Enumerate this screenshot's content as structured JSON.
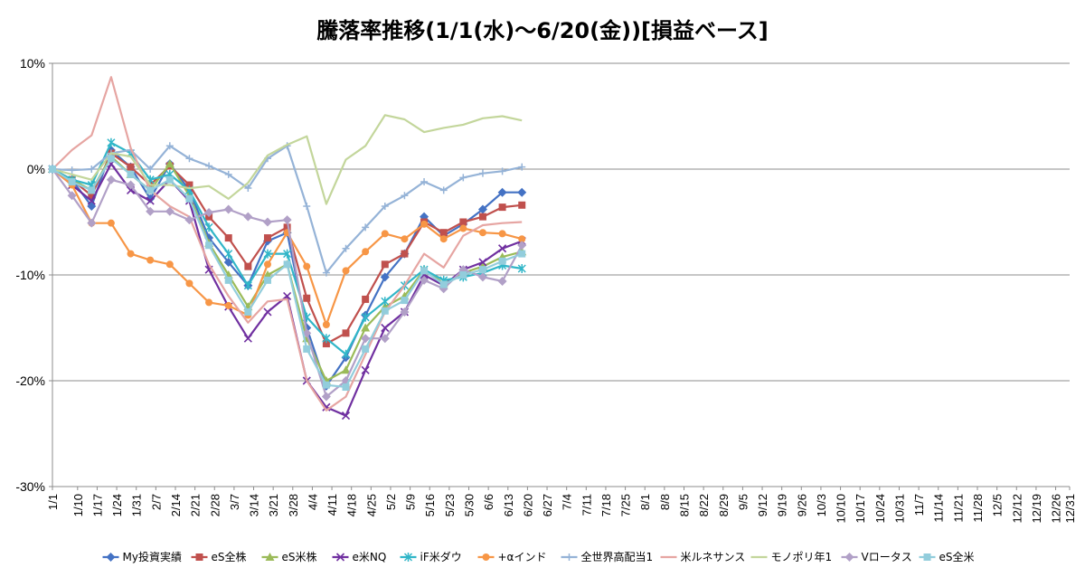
{
  "chart_data": {
    "type": "line",
    "title": "騰落率推移(1/1(水)〜6/20(金))[損益ベース]",
    "xlabel": "",
    "ylabel": "",
    "ylim": [
      -30,
      10
    ],
    "yticks": [
      "10%",
      "0%",
      "-10%",
      "-20%",
      "-30%"
    ],
    "ytick_values": [
      10,
      0,
      -10,
      -20,
      -30
    ],
    "grid": "horizontal",
    "legend": "bottom",
    "categories": [
      "1/1",
      "1/10",
      "1/17",
      "1/24",
      "1/31",
      "2/7",
      "2/14",
      "2/21",
      "2/28",
      "3/7",
      "3/14",
      "3/21",
      "3/28",
      "4/4",
      "4/11",
      "4/18",
      "4/25",
      "5/2",
      "5/9",
      "5/16",
      "5/23",
      "5/30",
      "6/6",
      "6/13",
      "6/20",
      "6/27",
      "7/4",
      "7/11",
      "7/18",
      "7/25",
      "8/1",
      "8/8",
      "8/15",
      "8/22",
      "8/29",
      "9/5",
      "9/12",
      "9/19",
      "9/26",
      "10/3",
      "10/10",
      "10/17",
      "10/24",
      "10/31",
      "11/7",
      "11/14",
      "11/21",
      "11/28",
      "12/5",
      "12/12",
      "12/19",
      "12/26",
      "12/31"
    ],
    "x_days": [
      0,
      9,
      16,
      23,
      30,
      37,
      44,
      51,
      58,
      65,
      72,
      79,
      86,
      93,
      100,
      107,
      114,
      121,
      128,
      135,
      142,
      149,
      156,
      163,
      170,
      177,
      184,
      191,
      198,
      205,
      212,
      219,
      226,
      233,
      240,
      247,
      254,
      261,
      268,
      275,
      282,
      289,
      296,
      303,
      310,
      317,
      324,
      331,
      338,
      345,
      352,
      359,
      364
    ],
    "series": [
      {
        "name": "My投資実績",
        "color": "#4472c4",
        "marker": "diamond",
        "points": [
          [
            0,
            0
          ],
          [
            7,
            -1
          ],
          [
            14,
            -3.5
          ],
          [
            21,
            1.8
          ],
          [
            28,
            0.2
          ],
          [
            35,
            -2.8
          ],
          [
            42,
            0.5
          ],
          [
            49,
            -2
          ],
          [
            56,
            -6.5
          ],
          [
            63,
            -8.8
          ],
          [
            70,
            -11
          ],
          [
            77,
            -6.8
          ],
          [
            84,
            -6
          ],
          [
            91,
            -15
          ],
          [
            98,
            -20.5
          ],
          [
            105,
            -17.8
          ],
          [
            112,
            -13.8
          ],
          [
            119,
            -10.2
          ],
          [
            126,
            -8
          ],
          [
            133,
            -4.5
          ],
          [
            140,
            -6.3
          ],
          [
            147,
            -5.2
          ],
          [
            154,
            -3.8
          ],
          [
            161,
            -2.2
          ],
          [
            168,
            -2.2
          ]
        ]
      },
      {
        "name": "eS全株",
        "color": "#c0504d",
        "marker": "square",
        "points": [
          [
            0,
            0
          ],
          [
            7,
            -1
          ],
          [
            14,
            -2.5
          ],
          [
            21,
            1.5
          ],
          [
            28,
            0.2
          ],
          [
            35,
            -1.5
          ],
          [
            42,
            0.3
          ],
          [
            49,
            -1.5
          ],
          [
            56,
            -4.5
          ],
          [
            63,
            -6.5
          ],
          [
            70,
            -9.2
          ],
          [
            77,
            -6.5
          ],
          [
            84,
            -5.5
          ],
          [
            91,
            -12.2
          ],
          [
            98,
            -16.5
          ],
          [
            105,
            -15.5
          ],
          [
            112,
            -12.3
          ],
          [
            119,
            -9
          ],
          [
            126,
            -8
          ],
          [
            133,
            -5
          ],
          [
            140,
            -6
          ],
          [
            147,
            -5
          ],
          [
            154,
            -4.5
          ],
          [
            161,
            -3.6
          ],
          [
            168,
            -3.4
          ]
        ]
      },
      {
        "name": "eS米株",
        "color": "#9bbb59",
        "marker": "triangle",
        "points": [
          [
            0,
            0
          ],
          [
            7,
            -1
          ],
          [
            14,
            -2
          ],
          [
            21,
            1.2
          ],
          [
            28,
            -0.5
          ],
          [
            35,
            -2
          ],
          [
            42,
            0.5
          ],
          [
            49,
            -2.5
          ],
          [
            56,
            -7
          ],
          [
            63,
            -10
          ],
          [
            70,
            -13
          ],
          [
            77,
            -10
          ],
          [
            84,
            -9
          ],
          [
            91,
            -16
          ],
          [
            98,
            -20
          ],
          [
            105,
            -19
          ],
          [
            112,
            -15
          ],
          [
            119,
            -13
          ],
          [
            126,
            -12
          ],
          [
            133,
            -9.5
          ],
          [
            140,
            -10.8
          ],
          [
            147,
            -9.8
          ],
          [
            154,
            -9.2
          ],
          [
            161,
            -8.3
          ],
          [
            168,
            -7.8
          ]
        ]
      },
      {
        "name": "e米NQ",
        "color": "#7030a0",
        "marker": "x",
        "points": [
          [
            0,
            0
          ],
          [
            7,
            -1.5
          ],
          [
            14,
            -3
          ],
          [
            21,
            0.5
          ],
          [
            28,
            -2
          ],
          [
            35,
            -3
          ],
          [
            42,
            -1
          ],
          [
            49,
            -3
          ],
          [
            56,
            -9.5
          ],
          [
            63,
            -13
          ],
          [
            70,
            -16
          ],
          [
            77,
            -13.5
          ],
          [
            84,
            -12
          ],
          [
            91,
            -20
          ],
          [
            98,
            -22.5
          ],
          [
            105,
            -23.3
          ],
          [
            112,
            -19
          ],
          [
            119,
            -15
          ],
          [
            126,
            -13.5
          ],
          [
            133,
            -10
          ],
          [
            140,
            -11
          ],
          [
            147,
            -9.5
          ],
          [
            154,
            -8.8
          ],
          [
            161,
            -7.5
          ],
          [
            168,
            -6.8
          ]
        ]
      },
      {
        "name": "iF米ダウ",
        "color": "#31b6c8",
        "marker": "star",
        "points": [
          [
            0,
            0
          ],
          [
            7,
            -1
          ],
          [
            14,
            -1.5
          ],
          [
            21,
            2.5
          ],
          [
            28,
            1.5
          ],
          [
            35,
            -1
          ],
          [
            42,
            -0.5
          ],
          [
            49,
            -2
          ],
          [
            56,
            -5.5
          ],
          [
            63,
            -8
          ],
          [
            70,
            -11
          ],
          [
            77,
            -8
          ],
          [
            84,
            -8
          ],
          [
            91,
            -14
          ],
          [
            98,
            -16
          ],
          [
            105,
            -17.5
          ],
          [
            112,
            -14
          ],
          [
            119,
            -12.5
          ],
          [
            126,
            -11
          ],
          [
            133,
            -9.5
          ],
          [
            140,
            -10.5
          ],
          [
            147,
            -10.2
          ],
          [
            154,
            -9.8
          ],
          [
            161,
            -9.1
          ],
          [
            168,
            -9.4
          ]
        ]
      },
      {
        "name": "+αインド",
        "color": "#f79646",
        "marker": "circle",
        "points": [
          [
            0,
            0
          ],
          [
            7,
            -1.5
          ],
          [
            14,
            -5.1
          ],
          [
            21,
            -5.1
          ],
          [
            28,
            -8
          ],
          [
            35,
            -8.6
          ],
          [
            42,
            -9
          ],
          [
            49,
            -10.8
          ],
          [
            56,
            -12.6
          ],
          [
            63,
            -12.9
          ],
          [
            70,
            -13.8
          ],
          [
            77,
            -9
          ],
          [
            84,
            -6
          ],
          [
            91,
            -9.2
          ],
          [
            98,
            -14.7
          ],
          [
            105,
            -9.6
          ],
          [
            112,
            -7.8
          ],
          [
            119,
            -6.1
          ],
          [
            126,
            -6.6
          ],
          [
            133,
            -5.2
          ],
          [
            140,
            -6.6
          ],
          [
            147,
            -5.6
          ],
          [
            154,
            -6
          ],
          [
            161,
            -6.1
          ],
          [
            168,
            -6.6
          ]
        ]
      },
      {
        "name": "全世界高配当1",
        "color": "#95b3d7",
        "marker": "plus",
        "points": [
          [
            0,
            0
          ],
          [
            7,
            -0.1
          ],
          [
            14,
            0
          ],
          [
            21,
            1.5
          ],
          [
            28,
            1.8
          ],
          [
            35,
            0
          ],
          [
            42,
            2.2
          ],
          [
            49,
            1
          ],
          [
            56,
            0.3
          ],
          [
            63,
            -0.5
          ],
          [
            70,
            -1.8
          ],
          [
            77,
            1
          ],
          [
            84,
            2.2
          ],
          [
            91,
            -3.5
          ],
          [
            98,
            -9.8
          ],
          [
            105,
            -7.5
          ],
          [
            112,
            -5.5
          ],
          [
            119,
            -3.5
          ],
          [
            126,
            -2.5
          ],
          [
            133,
            -1.2
          ],
          [
            140,
            -2
          ],
          [
            147,
            -0.8
          ],
          [
            154,
            -0.4
          ],
          [
            161,
            -0.2
          ],
          [
            168,
            0.2
          ]
        ]
      },
      {
        "name": "米ルネサンス",
        "color": "#e6a5a2",
        "marker": "none",
        "points": [
          [
            0,
            0
          ],
          [
            7,
            1.8
          ],
          [
            14,
            3.2
          ],
          [
            21,
            8.7
          ],
          [
            28,
            2
          ],
          [
            35,
            -2
          ],
          [
            42,
            -3.5
          ],
          [
            49,
            -4.5
          ],
          [
            56,
            -9
          ],
          [
            63,
            -12
          ],
          [
            70,
            -14.5
          ],
          [
            77,
            -12.5
          ],
          [
            84,
            -12.3
          ],
          [
            91,
            -20
          ],
          [
            98,
            -22.8
          ],
          [
            105,
            -21.5
          ],
          [
            112,
            -17.5
          ],
          [
            119,
            -13.5
          ],
          [
            126,
            -11
          ],
          [
            133,
            -8
          ],
          [
            140,
            -9.3
          ],
          [
            147,
            -6.3
          ],
          [
            154,
            -5.3
          ],
          [
            161,
            -5.1
          ],
          [
            168,
            -5
          ]
        ]
      },
      {
        "name": "モノポリ年1",
        "color": "#c3d69b",
        "marker": "none",
        "points": [
          [
            0,
            0
          ],
          [
            7,
            -0.5
          ],
          [
            14,
            -1
          ],
          [
            21,
            1.5
          ],
          [
            28,
            1.2
          ],
          [
            35,
            -1.5
          ],
          [
            42,
            -1.5
          ],
          [
            49,
            -1.8
          ],
          [
            56,
            -1.6
          ],
          [
            63,
            -2.8
          ],
          [
            70,
            -1.3
          ],
          [
            77,
            1.3
          ],
          [
            84,
            2.3
          ],
          [
            91,
            3.1
          ],
          [
            98,
            -3.3
          ],
          [
            105,
            0.9
          ],
          [
            112,
            2.2
          ],
          [
            119,
            5.1
          ],
          [
            126,
            4.7
          ],
          [
            133,
            3.5
          ],
          [
            140,
            3.9
          ],
          [
            147,
            4.2
          ],
          [
            154,
            4.8
          ],
          [
            161,
            5
          ],
          [
            168,
            4.6
          ]
        ]
      },
      {
        "name": "Vロータス",
        "color": "#b1a0c7",
        "marker": "diamond",
        "points": [
          [
            0,
            0
          ],
          [
            7,
            -2.5
          ],
          [
            14,
            -5.1
          ],
          [
            21,
            -1
          ],
          [
            28,
            -1.5
          ],
          [
            35,
            -4
          ],
          [
            42,
            -4
          ],
          [
            49,
            -4.8
          ],
          [
            56,
            -4.1
          ],
          [
            63,
            -3.8
          ],
          [
            70,
            -4.5
          ],
          [
            77,
            -5
          ],
          [
            84,
            -4.8
          ],
          [
            91,
            -15.5
          ],
          [
            98,
            -21.5
          ],
          [
            105,
            -20
          ],
          [
            112,
            -16
          ],
          [
            119,
            -16
          ],
          [
            126,
            -13.5
          ],
          [
            133,
            -10.5
          ],
          [
            140,
            -11.3
          ],
          [
            147,
            -9.5
          ],
          [
            154,
            -10.2
          ],
          [
            161,
            -10.6
          ],
          [
            168,
            -7.2
          ]
        ]
      },
      {
        "name": "eS全米",
        "color": "#92cddc",
        "marker": "square",
        "points": [
          [
            0,
            0
          ],
          [
            7,
            -1.2
          ],
          [
            14,
            -2
          ],
          [
            21,
            1
          ],
          [
            28,
            -0.5
          ],
          [
            35,
            -2
          ],
          [
            42,
            -1
          ],
          [
            49,
            -2.8
          ],
          [
            56,
            -7.2
          ],
          [
            63,
            -10.5
          ],
          [
            70,
            -13.5
          ],
          [
            77,
            -10.5
          ],
          [
            84,
            -9
          ],
          [
            91,
            -17
          ],
          [
            98,
            -20.4
          ],
          [
            105,
            -20.6
          ],
          [
            112,
            -17
          ],
          [
            119,
            -13.4
          ],
          [
            126,
            -12.4
          ],
          [
            133,
            -9.6
          ],
          [
            140,
            -10.9
          ],
          [
            147,
            -10
          ],
          [
            154,
            -9.5
          ],
          [
            161,
            -8.7
          ],
          [
            168,
            -8
          ]
        ]
      }
    ]
  }
}
